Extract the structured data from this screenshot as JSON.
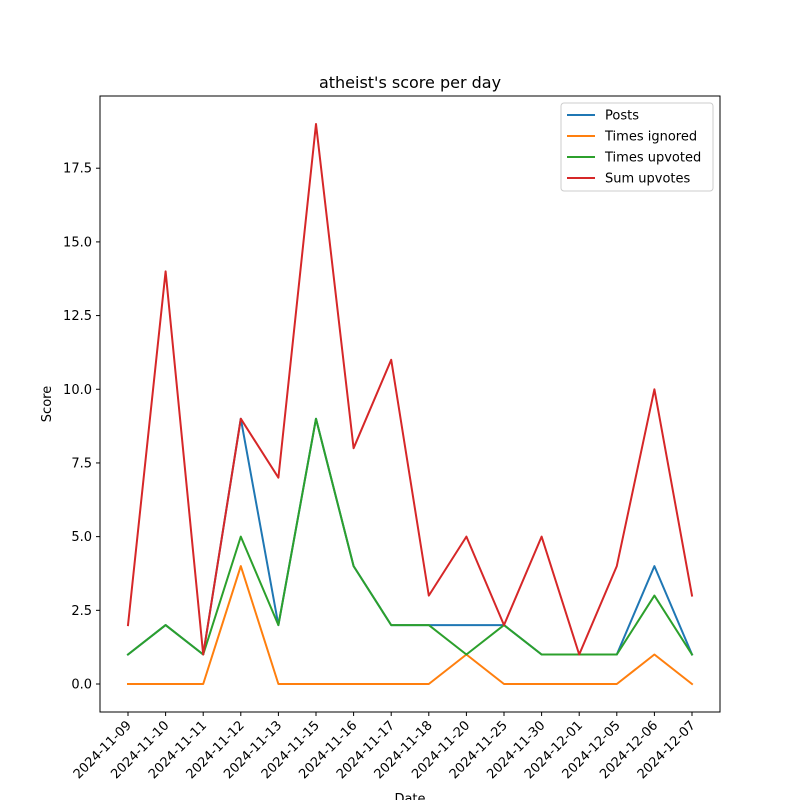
{
  "chart_data": {
    "type": "line",
    "title": "atheist's score per day",
    "xlabel": "Date",
    "ylabel": "Score",
    "categories": [
      "2024-11-09",
      "2024-11-10",
      "2024-11-11",
      "2024-11-12",
      "2024-11-13",
      "2024-11-15",
      "2024-11-16",
      "2024-11-17",
      "2024-11-18",
      "2024-11-20",
      "2024-11-25",
      "2024-11-30",
      "2024-12-01",
      "2024-12-05",
      "2024-12-06",
      "2024-12-07"
    ],
    "ylim": [
      -0.95,
      19.95
    ],
    "yticks": [
      0.0,
      2.5,
      5.0,
      7.5,
      10.0,
      12.5,
      15.0,
      17.5
    ],
    "ytick_labels": [
      "0.0",
      "2.5",
      "5.0",
      "7.5",
      "10.0",
      "12.5",
      "15.0",
      "17.5"
    ],
    "grid": false,
    "legend_position": "top-right",
    "series": [
      {
        "name": "Posts",
        "color": "#1f77b4",
        "values": [
          1,
          2,
          1,
          9,
          2,
          9,
          4,
          2,
          2,
          2,
          2,
          1,
          1,
          1,
          4,
          1
        ]
      },
      {
        "name": "Times ignored",
        "color": "#ff7f0e",
        "values": [
          0,
          0,
          0,
          4,
          0,
          0,
          0,
          0,
          0,
          1,
          0,
          0,
          0,
          0,
          1,
          0
        ]
      },
      {
        "name": "Times upvoted",
        "color": "#2ca02c",
        "values": [
          1,
          2,
          1,
          5,
          2,
          9,
          4,
          2,
          2,
          1,
          2,
          1,
          1,
          1,
          3,
          1
        ]
      },
      {
        "name": "Sum upvotes",
        "color": "#d62728",
        "values": [
          2,
          14,
          1,
          9,
          7,
          19,
          8,
          11,
          3,
          5,
          2,
          5,
          1,
          4,
          10,
          3
        ]
      }
    ]
  }
}
